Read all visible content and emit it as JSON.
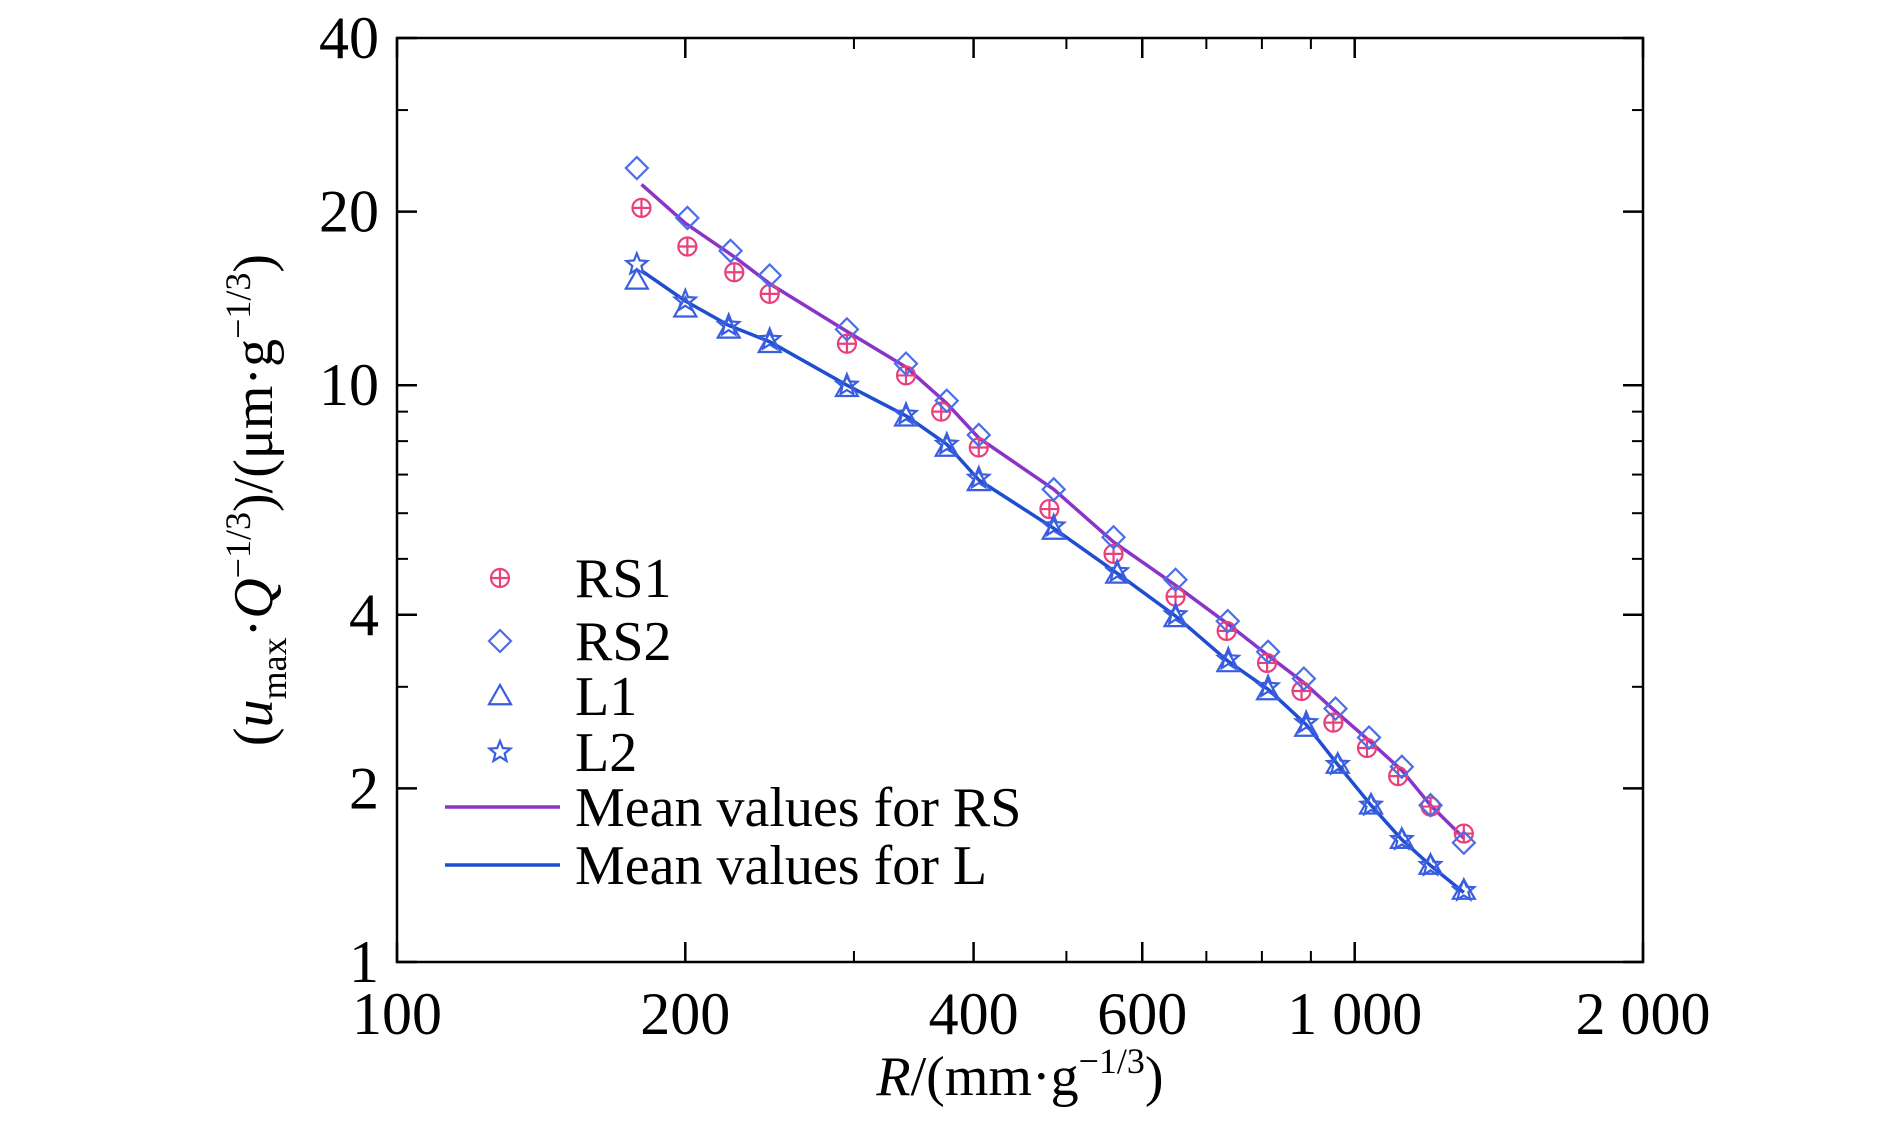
{
  "chart_data": {
    "type": "scatter",
    "title": "",
    "xlabel": {
      "italic": "R",
      "unit": "/(mm·g",
      "exp": "−1/3",
      "close": ")"
    },
    "ylabel": {
      "open": "(",
      "italic_u": "u",
      "sub": "max",
      "dot": "·",
      "italic_q": "Q",
      "exp1": "−1/3",
      "mid": ")/(μm·g",
      "exp2": "−1/3",
      "close": ")"
    },
    "x_scale": "log",
    "y_scale": "log",
    "xlim": [
      100,
      2000
    ],
    "ylim": [
      1,
      40
    ],
    "x_ticks": [
      {
        "value": 100,
        "label": "100"
      },
      {
        "value": 200,
        "label": "200"
      },
      {
        "value": 400,
        "label": "400"
      },
      {
        "value": 600,
        "label": "600"
      },
      {
        "value": 1000,
        "label": "1 000"
      },
      {
        "value": 2000,
        "label": "2 000"
      }
    ],
    "x_minor_ticks": [
      300,
      500,
      700,
      800,
      900
    ],
    "y_ticks": [
      {
        "value": 1,
        "label": "1"
      },
      {
        "value": 2,
        "label": "2"
      },
      {
        "value": 4,
        "label": "4"
      },
      {
        "value": 10,
        "label": "10"
      },
      {
        "value": 20,
        "label": "20"
      },
      {
        "value": 40,
        "label": "40"
      }
    ],
    "y_minor_ticks": [
      3,
      5,
      6,
      7,
      8,
      9,
      30
    ],
    "grid": false,
    "legend_position": "bottom-left",
    "series": [
      {
        "name": "RS1",
        "kind": "points",
        "marker": "circle-plus",
        "color": "#e8407a",
        "points": [
          [
            180,
            20.3
          ],
          [
            201,
            17.4
          ],
          [
            225,
            15.7
          ],
          [
            245,
            14.4
          ],
          [
            295,
            11.8
          ],
          [
            340,
            10.4
          ],
          [
            370,
            9.0
          ],
          [
            405,
            7.8
          ],
          [
            480,
            6.1
          ],
          [
            560,
            5.1
          ],
          [
            650,
            4.3
          ],
          [
            735,
            3.75
          ],
          [
            810,
            3.3
          ],
          [
            880,
            2.95
          ],
          [
            950,
            2.6
          ],
          [
            1030,
            2.35
          ],
          [
            1110,
            2.1
          ],
          [
            1200,
            1.86
          ],
          [
            1300,
            1.67
          ]
        ]
      },
      {
        "name": "RS2",
        "kind": "points",
        "marker": "diamond",
        "color": "#4a6ee8",
        "points": [
          [
            178,
            23.8
          ],
          [
            201,
            19.5
          ],
          [
            223,
            17.1
          ],
          [
            245,
            15.5
          ],
          [
            295,
            12.5
          ],
          [
            340,
            10.9
          ],
          [
            375,
            9.4
          ],
          [
            405,
            8.2
          ],
          [
            485,
            6.6
          ],
          [
            560,
            5.45
          ],
          [
            650,
            4.6
          ],
          [
            737,
            3.9
          ],
          [
            812,
            3.45
          ],
          [
            885,
            3.1
          ],
          [
            955,
            2.75
          ],
          [
            1035,
            2.45
          ],
          [
            1120,
            2.18
          ],
          [
            1200,
            1.87
          ],
          [
            1300,
            1.61
          ]
        ]
      },
      {
        "name": "L1",
        "kind": "points",
        "marker": "triangle",
        "color": "#3a5ee0",
        "points": [
          [
            178,
            15.2
          ],
          [
            200,
            13.6
          ],
          [
            222,
            12.5
          ],
          [
            245,
            11.8
          ],
          [
            295,
            9.9
          ],
          [
            340,
            8.8
          ],
          [
            375,
            7.8
          ],
          [
            405,
            6.8
          ],
          [
            485,
            5.6
          ],
          [
            565,
            4.7
          ],
          [
            650,
            3.95
          ],
          [
            738,
            3.3
          ],
          [
            812,
            2.95
          ],
          [
            890,
            2.55
          ],
          [
            960,
            2.2
          ],
          [
            1040,
            1.87
          ],
          [
            1120,
            1.63
          ],
          [
            1200,
            1.47
          ],
          [
            1300,
            1.33
          ]
        ]
      },
      {
        "name": "L2",
        "kind": "points",
        "marker": "star",
        "color": "#3a5ee0",
        "points": [
          [
            178,
            16.2
          ],
          [
            200,
            14.0
          ],
          [
            222,
            12.7
          ],
          [
            245,
            12.0
          ],
          [
            295,
            10.0
          ],
          [
            340,
            8.9
          ],
          [
            375,
            7.9
          ],
          [
            405,
            6.9
          ],
          [
            485,
            5.7
          ],
          [
            565,
            4.75
          ],
          [
            650,
            4.0
          ],
          [
            738,
            3.35
          ],
          [
            812,
            3.0
          ],
          [
            890,
            2.6
          ],
          [
            960,
            2.2
          ],
          [
            1040,
            1.87
          ],
          [
            1120,
            1.63
          ],
          [
            1200,
            1.47
          ],
          [
            1300,
            1.33
          ]
        ]
      },
      {
        "name": "Mean values for RS",
        "kind": "line",
        "color": "#8a35c8",
        "points": [
          [
            180,
            22.3
          ],
          [
            200,
            19.1
          ],
          [
            225,
            16.7
          ],
          [
            245,
            15.0
          ],
          [
            295,
            12.4
          ],
          [
            340,
            10.75
          ],
          [
            375,
            9.3
          ],
          [
            405,
            8.1
          ],
          [
            485,
            6.6
          ],
          [
            560,
            5.35
          ],
          [
            650,
            4.5
          ],
          [
            738,
            3.85
          ],
          [
            812,
            3.4
          ],
          [
            885,
            3.05
          ],
          [
            955,
            2.72
          ],
          [
            1035,
            2.42
          ],
          [
            1120,
            2.15
          ],
          [
            1200,
            1.87
          ],
          [
            1300,
            1.64
          ]
        ]
      },
      {
        "name": "Mean values for L",
        "kind": "line",
        "color": "#1f4fd0",
        "points": [
          [
            180,
            15.8
          ],
          [
            200,
            14.0
          ],
          [
            222,
            12.7
          ],
          [
            245,
            11.9
          ],
          [
            295,
            10.0
          ],
          [
            340,
            8.85
          ],
          [
            375,
            7.9
          ],
          [
            405,
            6.85
          ],
          [
            485,
            5.65
          ],
          [
            565,
            4.72
          ],
          [
            650,
            3.98
          ],
          [
            738,
            3.32
          ],
          [
            812,
            2.97
          ],
          [
            890,
            2.58
          ],
          [
            960,
            2.2
          ],
          [
            1040,
            1.87
          ],
          [
            1120,
            1.63
          ],
          [
            1200,
            1.47
          ],
          [
            1300,
            1.32
          ]
        ]
      }
    ]
  }
}
